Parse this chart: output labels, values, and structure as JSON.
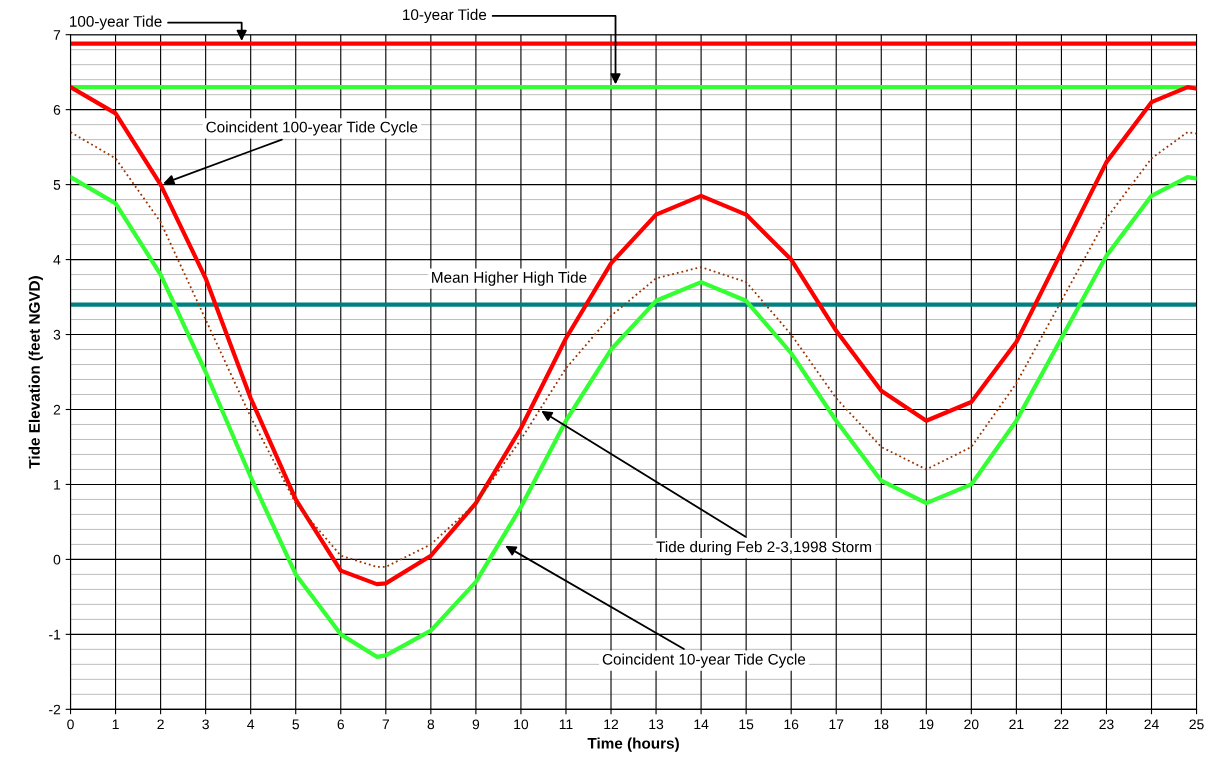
{
  "chart_data": {
    "type": "line",
    "xlabel": "Time (hours)",
    "ylabel": "Tide Elevation (feet NGVD)",
    "x": [
      0,
      1,
      2,
      3,
      4,
      5,
      6,
      6.8,
      7,
      8,
      9,
      10,
      11,
      12,
      13,
      14,
      15,
      16,
      17,
      18,
      19,
      20,
      21,
      22,
      23,
      24,
      24.8,
      25
    ],
    "series": [
      {
        "color": "#ff0000",
        "line_style": "solid",
        "values": [
          6.3,
          5.95,
          5.0,
          3.75,
          2.15,
          0.8,
          -0.15,
          -0.33,
          -0.32,
          0.05,
          0.75,
          1.75,
          2.95,
          3.95,
          4.6,
          4.85,
          4.6,
          4.0,
          3.05,
          2.25,
          1.85,
          2.1,
          2.9,
          4.1,
          5.3,
          6.1,
          6.3,
          6.28
        ]
      },
      {
        "color": "#993300",
        "line_style": "dotted",
        "values": [
          5.7,
          5.35,
          4.5,
          3.2,
          1.9,
          0.75,
          0.05,
          -0.1,
          -0.1,
          0.2,
          0.75,
          1.6,
          2.55,
          3.25,
          3.75,
          3.9,
          3.7,
          3.0,
          2.15,
          1.5,
          1.2,
          1.5,
          2.35,
          3.45,
          4.55,
          5.35,
          5.7,
          5.68
        ]
      },
      {
        "color": "#33ff33",
        "line_style": "solid",
        "values": [
          5.1,
          4.75,
          3.8,
          2.5,
          1.1,
          -0.2,
          -1.0,
          -1.3,
          -1.28,
          -0.95,
          -0.3,
          0.7,
          1.85,
          2.8,
          3.45,
          3.7,
          3.45,
          2.75,
          1.85,
          1.05,
          0.75,
          1.0,
          1.85,
          2.95,
          4.05,
          4.85,
          5.1,
          5.08
        ]
      }
    ],
    "ref_lines": [
      {
        "axis": "y",
        "value": 6.88,
        "color": "#ff0000"
      },
      {
        "axis": "y",
        "value": 6.3,
        "color": "#33ff33"
      },
      {
        "axis": "y",
        "value": 3.4,
        "color": "#008080"
      }
    ],
    "annotations": [
      {
        "text": "100-year Tide",
        "x": 3.8,
        "y": 6.88
      },
      {
        "text": "10-year Tide",
        "x": 12.1,
        "y": 6.3
      },
      {
        "text": "Coincident 100-year Tide Cycle",
        "x": 2.0,
        "y": 5.0
      },
      {
        "text": "Mean Higher High Tide",
        "x": 8.0,
        "y": 3.4
      },
      {
        "text": "Tide during Feb 2-3,1998 Storm",
        "x": 10.4,
        "y": 2.0
      },
      {
        "text": "Coincident 10-year Tide Cycle",
        "x": 9.6,
        "y": 0.2
      }
    ],
    "xlim": [
      0,
      25
    ],
    "xticks": [
      0,
      1,
      2,
      3,
      4,
      5,
      6,
      7,
      8,
      9,
      10,
      11,
      12,
      13,
      14,
      15,
      16,
      17,
      18,
      19,
      20,
      21,
      22,
      23,
      24,
      25
    ],
    "ylim": [
      -2,
      7
    ],
    "yticks": [
      -2,
      -1,
      0,
      1,
      2,
      3,
      4,
      5,
      6,
      7
    ],
    "grid": true
  }
}
